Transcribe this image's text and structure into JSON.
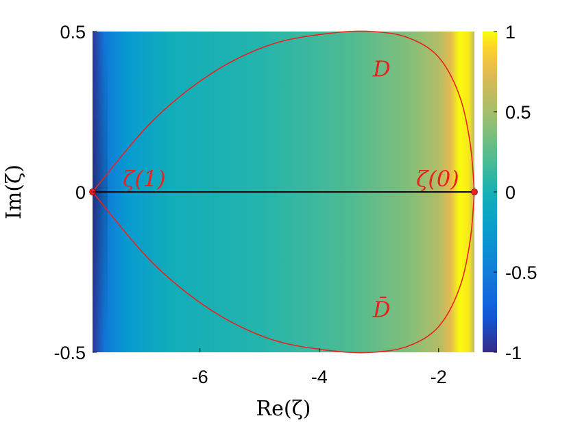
{
  "chart_data": {
    "type": "heatmap",
    "title": "",
    "xlabel": "Re(ζ)",
    "ylabel": "Im(ζ)",
    "xlim": [
      -7.8,
      -1.4
    ],
    "ylim": [
      -0.5,
      0.5
    ],
    "xticks": [
      -6,
      -4,
      -2
    ],
    "xtick_labels": [
      "-6",
      "-4",
      "-2"
    ],
    "yticks": [
      -0.5,
      0,
      0.5
    ],
    "ytick_labels": [
      "-0.5",
      "0",
      "0.5"
    ],
    "colorbar": {
      "colormap": "parula",
      "clim": [
        -1,
        1
      ],
      "ticks": [
        -1,
        -0.5,
        0,
        0.5,
        1
      ],
      "tick_labels": [
        "-1",
        "-0.5",
        "0",
        "0.5",
        "1"
      ]
    },
    "grid": false,
    "field_profile": [
      {
        "x": -7.8,
        "value": -0.95
      },
      {
        "x": -7.6,
        "value": -0.55
      },
      {
        "x": -7.2,
        "value": -0.25
      },
      {
        "x": -6.5,
        "value": -0.05
      },
      {
        "x": -5.0,
        "value": 0.05
      },
      {
        "x": -3.5,
        "value": 0.2
      },
      {
        "x": -2.5,
        "value": 0.38
      },
      {
        "x": -2.0,
        "value": 0.55
      },
      {
        "x": -1.8,
        "value": 0.75
      },
      {
        "x": -1.65,
        "value": 1.0
      },
      {
        "x": -1.5,
        "value": 0.95
      },
      {
        "x": -1.4,
        "value": 0.6
      }
    ],
    "curve": {
      "color": "#e8231f",
      "upper_label": "D",
      "lower_label": "D̄",
      "points": [
        {
          "x": -7.8,
          "y": 0.0
        },
        {
          "x": -6.8,
          "y": 0.22
        },
        {
          "x": -5.8,
          "y": 0.37
        },
        {
          "x": -4.8,
          "y": 0.46
        },
        {
          "x": -3.8,
          "y": 0.495
        },
        {
          "x": -3.1,
          "y": 0.5
        },
        {
          "x": -2.5,
          "y": 0.48
        },
        {
          "x": -2.0,
          "y": 0.42
        },
        {
          "x": -1.65,
          "y": 0.3
        },
        {
          "x": -1.47,
          "y": 0.15
        },
        {
          "x": -1.4,
          "y": 0.0
        }
      ]
    },
    "segment": {
      "x0": -7.8,
      "x1": -1.4,
      "y": 0,
      "color": "#000000"
    },
    "markers": [
      {
        "label": "ζ(1)",
        "x": -7.8,
        "y": 0,
        "color": "#e8231f"
      },
      {
        "label": "ζ(0)",
        "x": -1.4,
        "y": 0,
        "color": "#e8231f"
      }
    ]
  }
}
